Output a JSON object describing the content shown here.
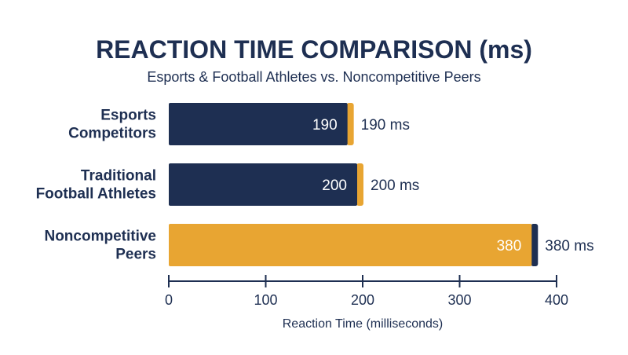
{
  "colors": {
    "navy": "#1e2f52",
    "gold": "#e8a532",
    "text": "#1e2f52",
    "inner_label": "#ffffff"
  },
  "chart_data": {
    "type": "bar",
    "orientation": "horizontal",
    "title": "REACTION TIME COMPARISON (ms)",
    "subtitle": "Esports & Football Athletes vs. Noncompetitive Peers",
    "xlabel": "Reaction Time (milliseconds)",
    "ylabel": "",
    "xlim": [
      0,
      400
    ],
    "xticks": [
      0,
      100,
      200,
      300,
      400
    ],
    "grid": false,
    "categories": [
      [
        "Esports",
        "Competitors"
      ],
      [
        "Traditional",
        "Football Athletes"
      ],
      [
        "Noncompetitive",
        "Peers"
      ]
    ],
    "values": [
      190,
      200,
      380
    ],
    "bar_colors": [
      "#1e2f52",
      "#1e2f52",
      "#e8a532"
    ],
    "accent_colors": [
      "#e8a532",
      "#e8a532",
      "#1e2f52"
    ],
    "inner_labels": [
      "190",
      "200",
      "380"
    ],
    "outer_labels": [
      "190 ms",
      "200 ms",
      "380 ms"
    ]
  }
}
